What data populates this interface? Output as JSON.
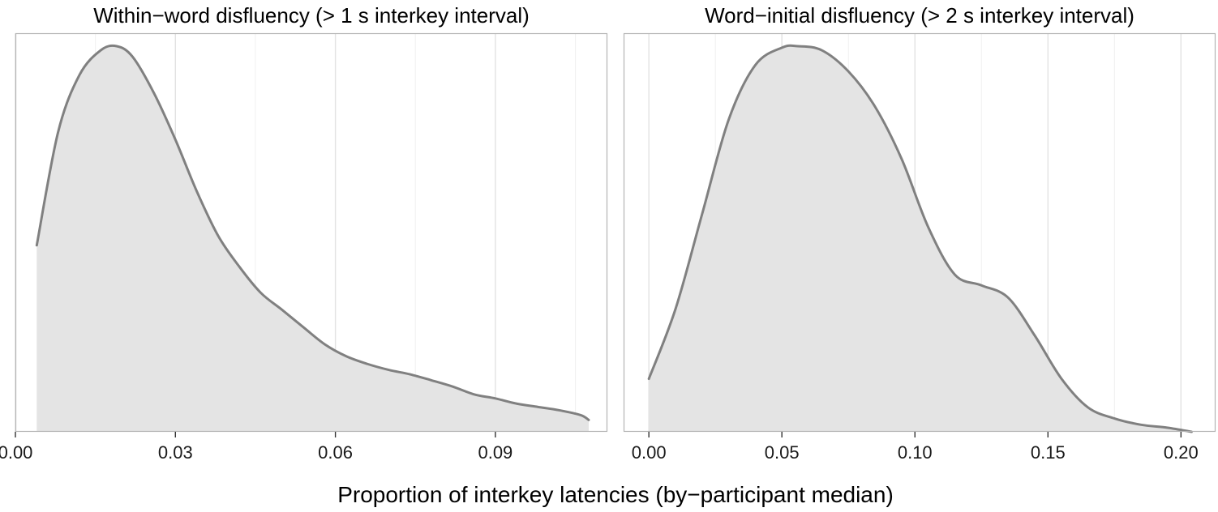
{
  "chart_data": [
    {
      "type": "area",
      "title": "Within−word disfluency (> 1 s interkey interval)",
      "xlim": [
        0.0,
        0.111
      ],
      "ylim": [
        0,
        1.075
      ],
      "grid": true,
      "x_major_ticks": [
        0.0,
        0.03,
        0.06,
        0.09
      ],
      "x_tick_labels": [
        "0.00",
        "0.03",
        "0.06",
        "0.09"
      ],
      "x_minor_ticks": [
        0.015,
        0.045,
        0.075,
        0.105
      ],
      "density": {
        "x": [
          0.004,
          0.008,
          0.012,
          0.016,
          0.019,
          0.022,
          0.026,
          0.03,
          0.034,
          0.038,
          0.042,
          0.046,
          0.05,
          0.054,
          0.058,
          0.062,
          0.066,
          0.07,
          0.074,
          0.078,
          0.082,
          0.086,
          0.09,
          0.094,
          0.098,
          0.102,
          0.106,
          0.1075
        ],
        "y": [
          0.503,
          0.808,
          0.962,
          1.029,
          1.04,
          1.011,
          0.913,
          0.788,
          0.649,
          0.529,
          0.445,
          0.375,
          0.329,
          0.282,
          0.236,
          0.204,
          0.183,
          0.167,
          0.155,
          0.139,
          0.122,
          0.101,
          0.09,
          0.076,
          0.067,
          0.058,
          0.045,
          0.032
        ]
      }
    },
    {
      "type": "area",
      "title": "Word−initial disfluency (> 2 s interkey interval)",
      "xlim": [
        -0.0095,
        0.213
      ],
      "ylim": [
        0,
        1.075
      ],
      "grid": true,
      "x_major_ticks": [
        0.0,
        0.05,
        0.1,
        0.15,
        0.2
      ],
      "x_tick_labels": [
        "0.00",
        "0.05",
        "0.10",
        "0.15",
        "0.20"
      ],
      "x_minor_ticks": [
        0.025,
        0.075,
        0.125,
        0.175
      ],
      "density": {
        "x": [
          0.0,
          0.01,
          0.02,
          0.03,
          0.04,
          0.05,
          0.056,
          0.065,
          0.075,
          0.085,
          0.095,
          0.105,
          0.115,
          0.125,
          0.135,
          0.145,
          0.155,
          0.165,
          0.175,
          0.185,
          0.195,
          0.204
        ],
        "y": [
          0.143,
          0.331,
          0.587,
          0.842,
          0.989,
          1.036,
          1.04,
          1.029,
          0.972,
          0.877,
          0.736,
          0.552,
          0.424,
          0.395,
          0.362,
          0.26,
          0.144,
          0.066,
          0.036,
          0.019,
          0.011,
          0.0
        ]
      }
    }
  ],
  "xlabel": "Proportion of interkey latencies (by−participant median)",
  "colors": {
    "fill": "#e4e4e4",
    "line": "#808080",
    "grid_major": "#e2e2e2",
    "grid_minor": "#f0f0f0",
    "border": "#b3b3b3",
    "tick": "#333333",
    "text": "#1a1a1a"
  }
}
